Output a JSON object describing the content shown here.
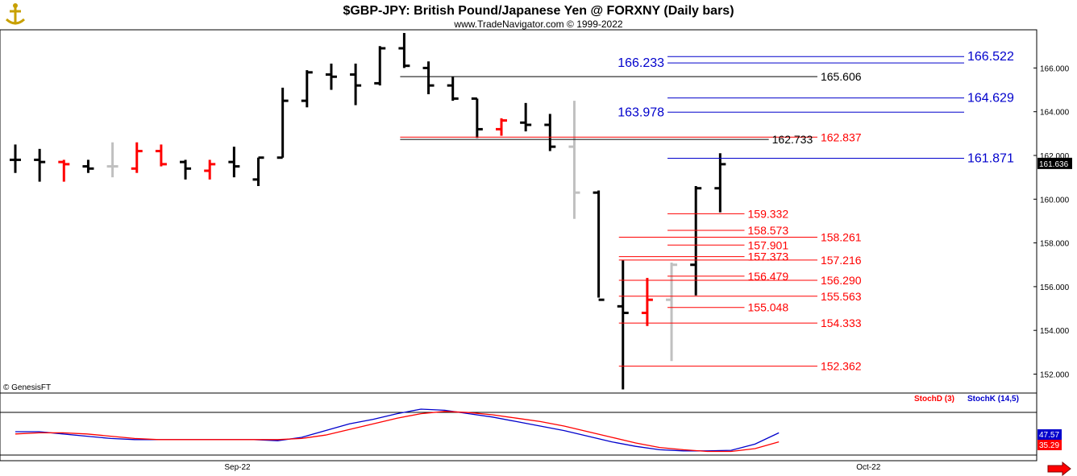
{
  "header": {
    "title": "$GBP-JPY:  British Pound/Japanese Yen @ FORXNY  (Daily bars)",
    "subtitle": "www.TradeNavigator.com © 1999-2022"
  },
  "copyright": "© GenesisFT",
  "colors": {
    "up": "#000000",
    "down": "#ff0000",
    "neutral": "#c0c0c0",
    "blue": "#0000cc",
    "red": "#ff0000"
  },
  "chart_data": [
    {
      "type": "ohlc",
      "title": "$GBP-JPY:  British Pound/Japanese Yen @ FORXNY  (Daily bars)",
      "ylim": [
        151.3,
        167.7
      ],
      "yticks": [
        "152.000",
        "154.000",
        "156.000",
        "158.000",
        "160.000",
        "162.000",
        "164.000",
        "166.000"
      ],
      "xlabels": [
        {
          "label": "Sep-22",
          "bar": 9
        },
        {
          "label": "Oct-22",
          "bar": 35
        }
      ],
      "last_price": "161.636",
      "bars": [
        {
          "o": 161.8,
          "h": 162.5,
          "l": 161.2,
          "c": 161.8,
          "col": "black"
        },
        {
          "o": 161.8,
          "h": 162.3,
          "l": 160.8,
          "c": 161.7,
          "col": "black"
        },
        {
          "o": 161.7,
          "h": 161.8,
          "l": 160.8,
          "c": 161.6,
          "col": "red"
        },
        {
          "o": 161.5,
          "h": 161.8,
          "l": 161.2,
          "c": 161.4,
          "col": "black"
        },
        {
          "o": 161.5,
          "h": 162.6,
          "l": 161.0,
          "c": 161.5,
          "col": "gray"
        },
        {
          "o": 161.4,
          "h": 162.6,
          "l": 161.2,
          "c": 162.2,
          "col": "red"
        },
        {
          "o": 162.2,
          "h": 162.5,
          "l": 161.5,
          "c": 161.6,
          "col": "red"
        },
        {
          "o": 161.7,
          "h": 161.8,
          "l": 160.9,
          "c": 161.4,
          "col": "black"
        },
        {
          "o": 161.3,
          "h": 161.8,
          "l": 160.9,
          "c": 161.6,
          "col": "red"
        },
        {
          "o": 161.7,
          "h": 162.4,
          "l": 161.0,
          "c": 161.5,
          "col": "black"
        },
        {
          "o": 160.9,
          "h": 161.9,
          "l": 160.6,
          "c": 161.9,
          "col": "black"
        },
        {
          "o": 161.9,
          "h": 165.1,
          "l": 161.9,
          "c": 164.5,
          "col": "black"
        },
        {
          "o": 164.5,
          "h": 165.9,
          "l": 164.2,
          "c": 165.8,
          "col": "black"
        },
        {
          "o": 165.7,
          "h": 166.2,
          "l": 165.0,
          "c": 165.6,
          "col": "black"
        },
        {
          "o": 165.7,
          "h": 166.2,
          "l": 164.3,
          "c": 165.2,
          "col": "black"
        },
        {
          "o": 165.3,
          "h": 167.0,
          "l": 165.2,
          "c": 166.9,
          "col": "black"
        },
        {
          "o": 166.9,
          "h": 167.6,
          "l": 166.0,
          "c": 166.1,
          "col": "black"
        },
        {
          "o": 166.0,
          "h": 166.3,
          "l": 164.8,
          "c": 165.2,
          "col": "black"
        },
        {
          "o": 165.2,
          "h": 165.6,
          "l": 164.5,
          "c": 164.6,
          "col": "black"
        },
        {
          "o": 164.6,
          "h": 164.6,
          "l": 162.8,
          "c": 163.2,
          "col": "black"
        },
        {
          "o": 163.2,
          "h": 163.7,
          "l": 162.9,
          "c": 163.6,
          "col": "red"
        },
        {
          "o": 163.5,
          "h": 164.4,
          "l": 163.1,
          "c": 163.4,
          "col": "black"
        },
        {
          "o": 163.4,
          "h": 163.9,
          "l": 162.2,
          "c": 162.4,
          "col": "black"
        },
        {
          "o": 162.4,
          "h": 164.5,
          "l": 159.1,
          "c": 160.3,
          "col": "gray"
        },
        {
          "o": 160.3,
          "h": 160.4,
          "l": 155.5,
          "c": 155.4,
          "col": "black"
        },
        {
          "o": 155.1,
          "h": 157.2,
          "l": 151.3,
          "c": 154.8,
          "col": "black"
        },
        {
          "o": 154.8,
          "h": 156.4,
          "l": 154.2,
          "c": 155.4,
          "col": "red"
        },
        {
          "o": 155.4,
          "h": 157.1,
          "l": 152.6,
          "c": 157.0,
          "col": "gray"
        },
        {
          "o": 157.0,
          "h": 160.6,
          "l": 155.6,
          "c": 160.5,
          "col": "black"
        },
        {
          "o": 160.5,
          "h": 162.1,
          "l": 159.4,
          "c": 161.6,
          "col": "black"
        }
      ],
      "levels": [
        {
          "value": 166.522,
          "label": "166.522",
          "color": "blue",
          "from": 27,
          "to": 40,
          "label_at": "right",
          "big": true
        },
        {
          "value": 166.233,
          "label": "166.233",
          "color": "blue",
          "from": 27,
          "to": 40,
          "label_at": "left",
          "big": true
        },
        {
          "value": 165.606,
          "label": "165.606",
          "color": "black",
          "from": 16,
          "to": 33,
          "label_at": "end",
          "big": false
        },
        {
          "value": 164.629,
          "label": "164.629",
          "color": "blue",
          "from": 27,
          "to": 40,
          "label_at": "right",
          "big": true
        },
        {
          "value": 163.978,
          "label": "163.978",
          "color": "blue",
          "from": 27,
          "to": 40,
          "label_at": "left",
          "big": true
        },
        {
          "value": 162.837,
          "label": "162.837",
          "color": "red",
          "from": 16,
          "to": 33,
          "label_at": "end",
          "big": false
        },
        {
          "value": 162.733,
          "label": "162.733",
          "color": "black",
          "from": 16,
          "to": 31,
          "label_at": "end",
          "big": false
        },
        {
          "value": 161.871,
          "label": "161.871",
          "color": "blue",
          "from": 27,
          "to": 40,
          "label_at": "right",
          "big": true
        },
        {
          "value": 159.332,
          "label": "159.332",
          "color": "red",
          "from": 27,
          "to": 30,
          "label_at": "end",
          "big": false
        },
        {
          "value": 158.573,
          "label": "158.573",
          "color": "red",
          "from": 27,
          "to": 30,
          "label_at": "end",
          "big": false
        },
        {
          "value": 158.261,
          "label": "158.261",
          "color": "red",
          "from": 25,
          "to": 33,
          "label_at": "end",
          "big": false
        },
        {
          "value": 157.901,
          "label": "157.901",
          "color": "red",
          "from": 27,
          "to": 30,
          "label_at": "end",
          "big": false
        },
        {
          "value": 157.373,
          "label": "157.373",
          "color": "red",
          "from": 25,
          "to": 30,
          "label_at": "end",
          "big": false
        },
        {
          "value": 157.216,
          "label": "157.216",
          "color": "red",
          "from": 25,
          "to": 33,
          "label_at": "end",
          "big": false
        },
        {
          "value": 156.479,
          "label": "156.479",
          "color": "red",
          "from": 27,
          "to": 30,
          "label_at": "end",
          "big": false
        },
        {
          "value": 156.29,
          "label": "156.290",
          "color": "red",
          "from": 25,
          "to": 33,
          "label_at": "end",
          "big": false
        },
        {
          "value": 155.563,
          "label": "155.563",
          "color": "red",
          "from": 25,
          "to": 33,
          "label_at": "end",
          "big": false
        },
        {
          "value": 155.048,
          "label": "155.048",
          "color": "red",
          "from": 27,
          "to": 30,
          "label_at": "end",
          "big": false
        },
        {
          "value": 154.333,
          "label": "154.333",
          "color": "red",
          "from": 25,
          "to": 33,
          "label_at": "end",
          "big": false
        },
        {
          "value": 152.362,
          "label": "152.362",
          "color": "red",
          "from": 25,
          "to": 33,
          "label_at": "end",
          "big": false
        }
      ]
    },
    {
      "type": "line",
      "legend": [
        {
          "name": "StochD (3)",
          "color": "red"
        },
        {
          "name": "StochK (14,5)",
          "color": "blue"
        }
      ],
      "ylim": [
        0,
        100
      ],
      "last_values": {
        "k": "47.57",
        "d": "35.29"
      },
      "series": [
        {
          "name": "StochK (14,5)",
          "values": [
            40,
            40,
            36,
            32,
            28,
            26,
            26,
            26,
            26,
            26,
            26,
            24,
            30,
            42,
            54,
            62,
            72,
            80,
            78,
            72,
            66,
            58,
            50,
            42,
            32,
            22,
            14,
            8,
            6,
            6,
            7,
            18,
            38
          ]
        },
        {
          "name": "StochD (3)",
          "values": [
            36,
            38,
            38,
            36,
            32,
            28,
            26,
            26,
            26,
            26,
            26,
            26,
            28,
            34,
            44,
            54,
            64,
            72,
            76,
            74,
            70,
            64,
            58,
            50,
            40,
            30,
            20,
            12,
            8,
            5,
            5,
            10,
            22
          ]
        }
      ]
    }
  ]
}
